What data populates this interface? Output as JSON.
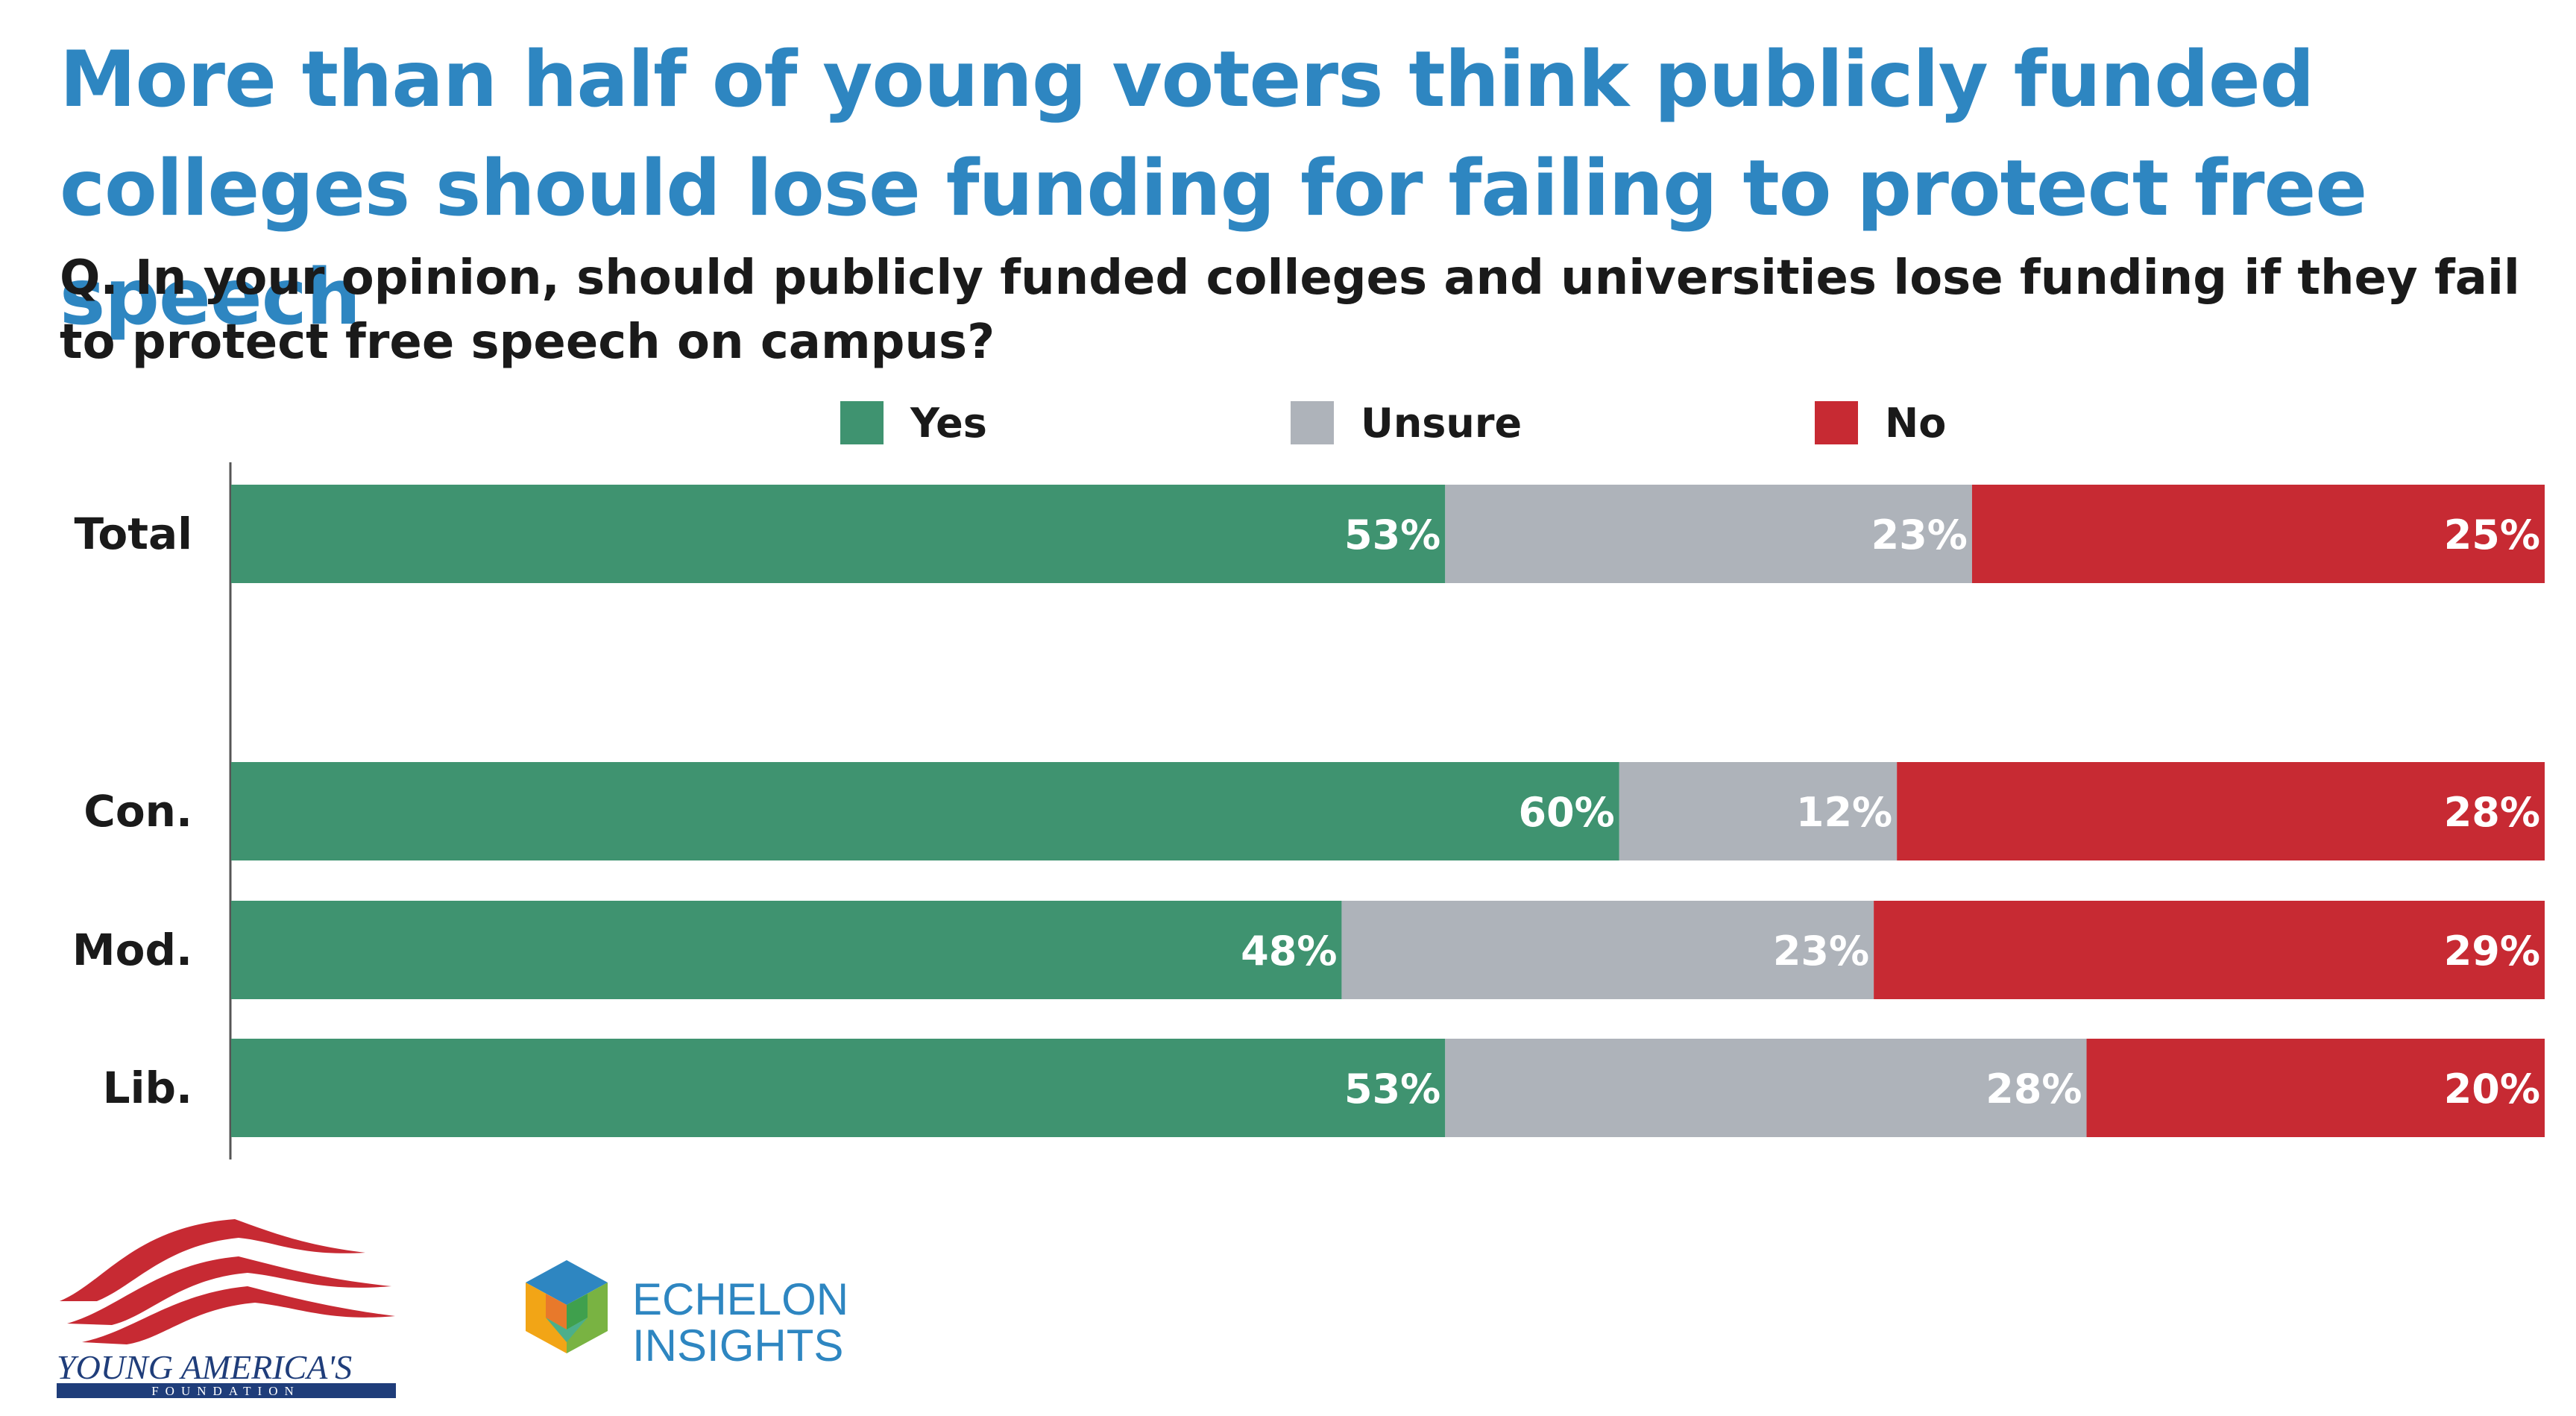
{
  "title": "More than half of young voters think publicly funded colleges should lose funding for failing to protect free speech",
  "question": "Q. In your opinion, should publicly funded colleges and universities lose funding if they fail to protect free speech on campus?",
  "colors": {
    "yes": "#3f9370",
    "unsure": "#aeb3ba",
    "no": "#c72a33",
    "title": "#2e86c1"
  },
  "chart_data": {
    "type": "bar",
    "orientation": "horizontal",
    "stacked": true,
    "title": "More than half of young voters think publicly funded colleges should lose funding for failing to protect free speech",
    "legend": [
      "Yes",
      "Unsure",
      "No"
    ],
    "legend_position": "top",
    "categories": [
      "Total",
      "Con.",
      "Mod.",
      "Lib."
    ],
    "series": [
      {
        "name": "Yes",
        "values": [
          53,
          60,
          48,
          53
        ],
        "labels": [
          "53%",
          "60%",
          "48%",
          "53%"
        ]
      },
      {
        "name": "Unsure",
        "values": [
          23,
          12,
          23,
          28
        ],
        "labels": [
          "23%",
          "12%",
          "23%",
          "28%"
        ]
      },
      {
        "name": "No",
        "values": [
          25,
          28,
          29,
          20
        ],
        "labels": [
          "25%",
          "28%",
          "29%",
          "20%"
        ]
      }
    ],
    "xlim": [
      0,
      100
    ],
    "xlabel": "",
    "ylabel": "",
    "grid": false
  },
  "logos": {
    "yaf": {
      "line1": "YOUNG AMERICA'S",
      "line2": "FOUNDATION"
    },
    "echelon": {
      "line1": "ECHELON",
      "line2": "INSIGHTS"
    }
  }
}
